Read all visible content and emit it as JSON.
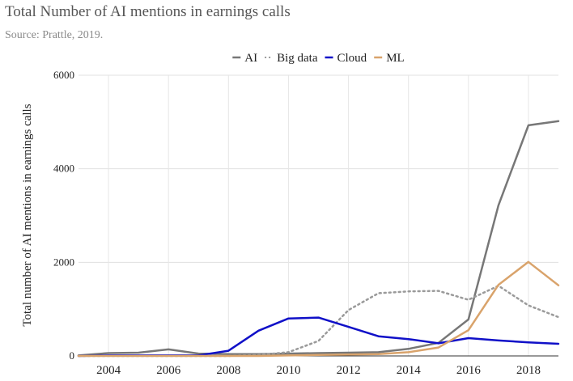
{
  "header": {
    "title": "Total Number of AI mentions in earnings calls",
    "source": "Source: Prattle, 2019."
  },
  "chart_data": {
    "type": "line",
    "title": "Total Number of AI mentions in earnings calls",
    "subtitle": "Source: Prattle, 2019.",
    "xlabel": "",
    "ylabel": "Total number of AI mentions in earnings calls",
    "xlim": [
      2003,
      2019
    ],
    "ylim": [
      0,
      6000
    ],
    "x_ticks": [
      2004,
      2006,
      2008,
      2010,
      2012,
      2014,
      2016,
      2018
    ],
    "y_ticks": [
      0,
      2000,
      4000,
      6000
    ],
    "grid": true,
    "legend_position": "top",
    "x": [
      2003,
      2004,
      2005,
      2006,
      2007,
      2008,
      2009,
      2010,
      2011,
      2012,
      2013,
      2014,
      2015,
      2016,
      2017,
      2018,
      2019
    ],
    "series": [
      {
        "name": "AI",
        "color": "#777777",
        "dash": "solid",
        "values": [
          10,
          60,
          70,
          140,
          50,
          40,
          40,
          50,
          60,
          70,
          80,
          150,
          280,
          780,
          3220,
          4930,
          5020
        ]
      },
      {
        "name": "Big data",
        "color": "#9a9a9a",
        "dash": "dotted",
        "values": [
          0,
          0,
          0,
          0,
          0,
          0,
          20,
          80,
          320,
          980,
          1340,
          1380,
          1390,
          1200,
          1500,
          1080,
          830
        ]
      },
      {
        "name": "Cloud",
        "color": "#1010c8",
        "dash": "solid",
        "values": [
          0,
          10,
          10,
          10,
          10,
          110,
          540,
          800,
          820,
          620,
          420,
          360,
          270,
          380,
          330,
          290,
          260
        ]
      },
      {
        "name": "ML",
        "color": "#d9a36b",
        "dash": "solid",
        "values": [
          0,
          0,
          0,
          0,
          0,
          0,
          0,
          10,
          20,
          30,
          40,
          80,
          180,
          550,
          1520,
          2010,
          1510
        ]
      }
    ]
  }
}
